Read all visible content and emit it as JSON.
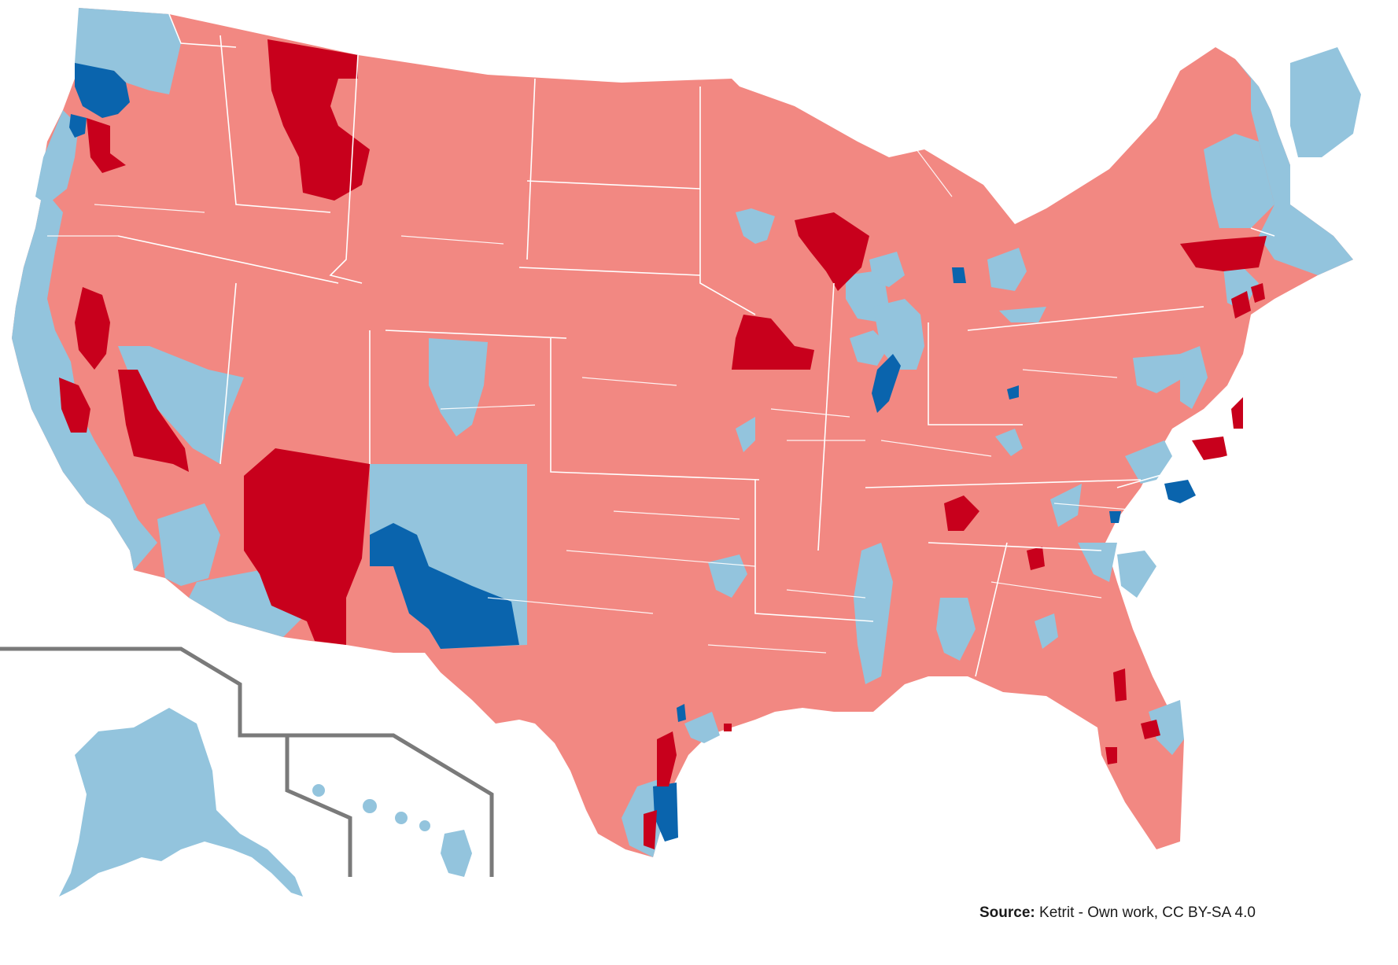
{
  "credit": {
    "label": "Source:",
    "text": "Ketrit - Own work, CC BY-SA 4.0"
  },
  "colors": {
    "strong_rep": "#c8001c",
    "lean_rep": "#f28882",
    "lean_dem": "#93c4dd",
    "strong_dem": "#0a64ad",
    "border": "#ffffff",
    "inset_frame": "#7a7a7a"
  }
}
